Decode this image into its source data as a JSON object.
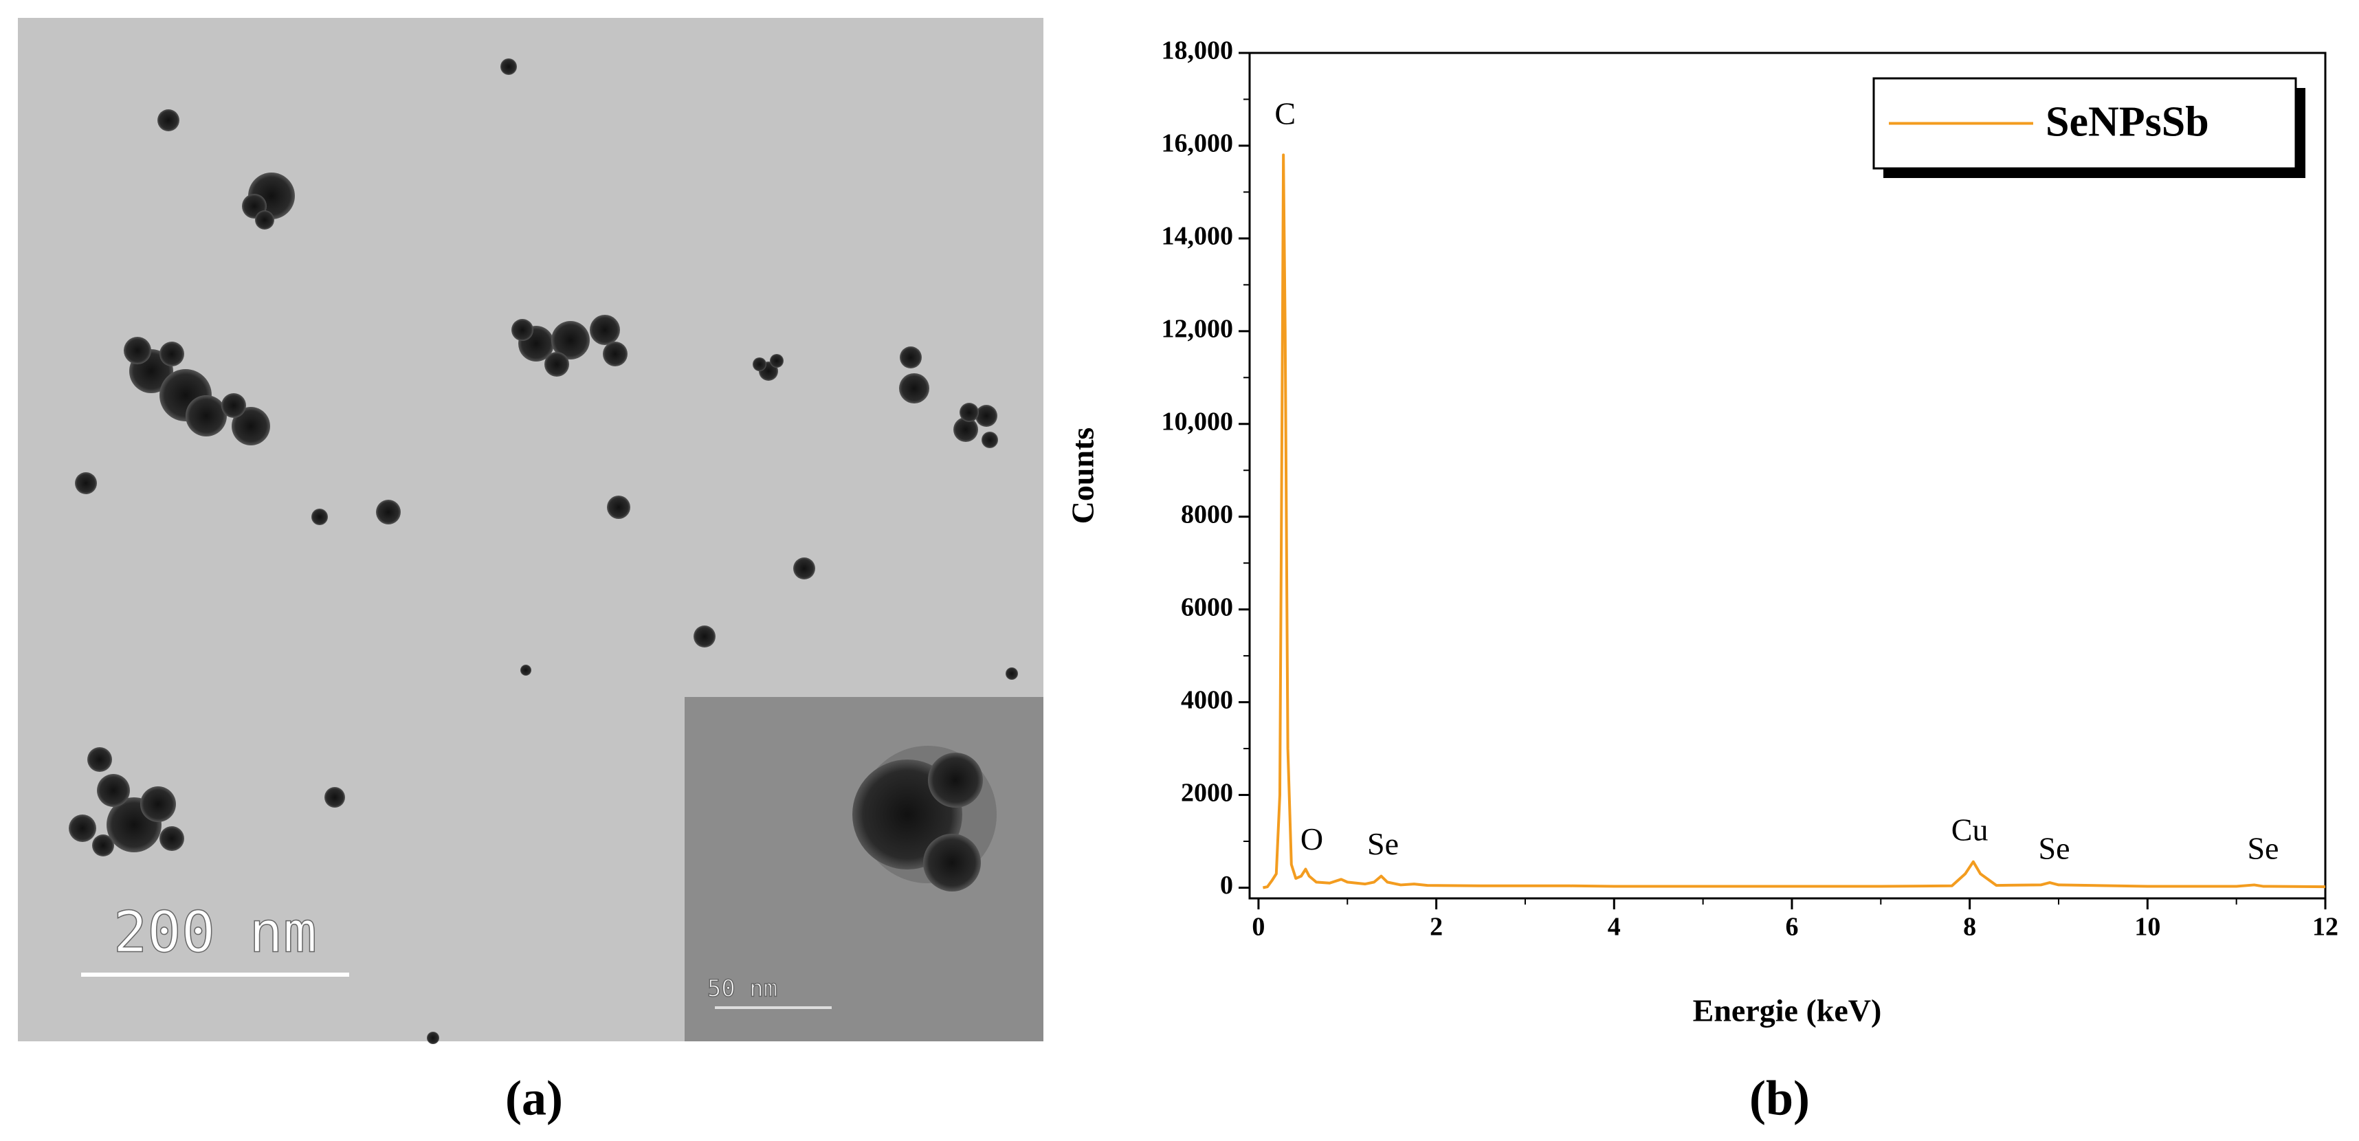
{
  "micrograph": {
    "scale_bar": "200 nm",
    "inset_scale_bar": "50 nm",
    "label": "(a)"
  },
  "chart_data": {
    "type": "line",
    "panel_label": "(b)",
    "x_label": "Energie (keV)",
    "y_label": "Counts",
    "xlim": [
      -0.1,
      12
    ],
    "xticks": [
      0,
      2,
      4,
      6,
      8,
      10,
      12
    ],
    "ylim": [
      -230,
      18000
    ],
    "yticks": [
      0,
      2000,
      4000,
      6000,
      8000,
      {
        "value": 10000,
        "label": "10,000"
      },
      {
        "value": 12000,
        "label": "12,000"
      },
      {
        "value": 14000,
        "label": "14,000"
      },
      {
        "value": 16000,
        "label": "16,000"
      },
      {
        "value": 18000,
        "label": "18,000"
      }
    ],
    "legend": "upper right",
    "x": [
      0.05,
      0.1,
      0.15,
      0.2,
      0.24,
      0.27,
      0.28,
      0.3,
      0.33,
      0.37,
      0.42,
      0.48,
      0.53,
      0.57,
      0.65,
      0.8,
      0.93,
      1.0,
      1.2,
      1.3,
      1.38,
      1.45,
      1.6,
      1.75,
      1.9,
      2.5,
      3,
      3.5,
      4,
      5,
      6,
      7,
      7.8,
      7.95,
      8.04,
      8.12,
      8.3,
      8.8,
      8.9,
      9.0,
      10,
      11,
      11.2,
      11.3,
      12
    ],
    "series": [
      {
        "name": "SeNPsSb",
        "color": "#f39c1f",
        "values": [
          0,
          20,
          150,
          300,
          2000,
          12000,
          15800,
          12000,
          3000,
          500,
          200,
          250,
          400,
          250,
          120,
          100,
          180,
          120,
          80,
          120,
          250,
          120,
          60,
          80,
          50,
          40,
          40,
          40,
          30,
          30,
          30,
          30,
          40,
          300,
          560,
          300,
          50,
          60,
          110,
          60,
          30,
          30,
          60,
          30,
          20
        ]
      }
    ],
    "annotations": [
      {
        "text": "C",
        "x": 0.3,
        "y": 16300
      },
      {
        "text": "O",
        "x": 0.6,
        "y": 650
      },
      {
        "text": "Se",
        "x": 1.4,
        "y": 550
      },
      {
        "text": "Cu",
        "x": 8.0,
        "y": 850
      },
      {
        "text": "Se",
        "x": 8.95,
        "y": 450
      },
      {
        "text": "Se",
        "x": 11.3,
        "y": 450
      }
    ]
  }
}
